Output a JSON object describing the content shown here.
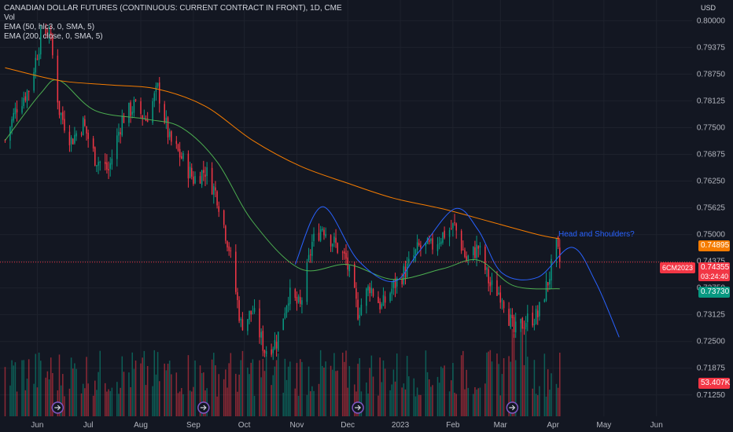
{
  "legend": {
    "title": "CANADIAN DOLLAR FUTURES (CONTINUOUS: CURRENT CONTRACT IN FRONT), 1D, CME",
    "vol": "Vol",
    "ema50": "EMA (50, hlc3, 0, SMA, 5)",
    "ema200": "EMA (200, close, 0, SMA, 5)"
  },
  "currency": "USD",
  "tags": {
    "symbol": "6CM2023",
    "last_price": "0.74355",
    "countdown": "03:24:40",
    "ema200_value": "0.74895",
    "ema50_value": "0.73730",
    "volume_value": "53.407K"
  },
  "annotation": "Head and Shoulders?",
  "colors": {
    "background": "#131722",
    "up": "#089981",
    "down": "#f23645",
    "ema50": "#4caf50",
    "ema200": "#f57c00",
    "pattern": "#2962ff",
    "event_icon": "#7e57c2"
  },
  "event_icon": "arrow-right-icon",
  "chart_data": {
    "type": "candlestick",
    "title": "CANADIAN DOLLAR FUTURES (CONTINUOUS: CURRENT CONTRACT IN FRONT), 1D, CME",
    "ylim": [
      0.7075,
      0.803
    ],
    "y_ticks": [
      "0.80000",
      "0.79375",
      "0.78750",
      "0.78125",
      "0.77500",
      "0.76875",
      "0.76250",
      "0.75625",
      "0.75000",
      "0.74375",
      "0.73750",
      "0.73125",
      "0.72500",
      "0.71875",
      "0.71250"
    ],
    "x_ticks": [
      "Jun",
      "Jul",
      "Aug",
      "Sep",
      "Oct",
      "Nov",
      "Dec",
      "2023",
      "Feb",
      "Mar",
      "Apr",
      "May",
      "Jun"
    ],
    "price_path": [
      [
        "2022-05-13",
        0.772
      ],
      [
        "2022-05-20",
        0.78
      ],
      [
        "2022-05-27",
        0.784
      ],
      [
        "2022-06-03",
        0.796
      ],
      [
        "2022-06-08",
        0.798
      ],
      [
        "2022-06-14",
        0.779
      ],
      [
        "2022-06-21",
        0.772
      ],
      [
        "2022-06-28",
        0.776
      ],
      [
        "2022-07-05",
        0.768
      ],
      [
        "2022-07-13",
        0.765
      ],
      [
        "2022-07-21",
        0.777
      ],
      [
        "2022-07-28",
        0.78
      ],
      [
        "2022-08-04",
        0.777
      ],
      [
        "2022-08-11",
        0.784
      ],
      [
        "2022-08-18",
        0.772
      ],
      [
        "2022-08-25",
        0.768
      ],
      [
        "2022-09-01",
        0.763
      ],
      [
        "2022-09-08",
        0.765
      ],
      [
        "2022-09-15",
        0.759
      ],
      [
        "2022-09-22",
        0.747
      ],
      [
        "2022-09-29",
        0.729
      ],
      [
        "2022-10-06",
        0.732
      ],
      [
        "2022-10-13",
        0.723
      ],
      [
        "2022-10-20",
        0.725
      ],
      [
        "2022-10-27",
        0.736
      ],
      [
        "2022-11-03",
        0.733
      ],
      [
        "2022-11-10",
        0.748
      ],
      [
        "2022-11-16",
        0.752
      ],
      [
        "2022-11-23",
        0.748
      ],
      [
        "2022-11-30",
        0.744
      ],
      [
        "2022-12-07",
        0.732
      ],
      [
        "2022-12-14",
        0.738
      ],
      [
        "2022-12-21",
        0.733
      ],
      [
        "2022-12-28",
        0.738
      ],
      [
        "2023-01-05",
        0.742
      ],
      [
        "2023-01-12",
        0.747
      ],
      [
        "2023-01-19",
        0.747
      ],
      [
        "2023-01-26",
        0.75
      ],
      [
        "2023-02-02",
        0.752
      ],
      [
        "2023-02-09",
        0.744
      ],
      [
        "2023-02-16",
        0.747
      ],
      [
        "2023-02-23",
        0.738
      ],
      [
        "2023-03-02",
        0.736
      ],
      [
        "2023-03-09",
        0.727
      ],
      [
        "2023-03-16",
        0.73
      ],
      [
        "2023-03-23",
        0.731
      ],
      [
        "2023-03-29",
        0.739
      ],
      [
        "2023-04-03",
        0.747
      ],
      [
        "2023-04-05",
        0.7436
      ]
    ],
    "series": [
      {
        "name": "EMA (50, hlc3, 0, SMA, 5)",
        "color": "#4caf50",
        "points": [
          [
            "2022-05-13",
            0.772
          ],
          [
            "2022-06-03",
            0.783
          ],
          [
            "2022-06-14",
            0.786
          ],
          [
            "2022-07-05",
            0.779
          ],
          [
            "2022-08-04",
            0.777
          ],
          [
            "2022-08-25",
            0.775
          ],
          [
            "2022-09-15",
            0.767
          ],
          [
            "2022-10-06",
            0.753
          ],
          [
            "2022-11-03",
            0.742
          ],
          [
            "2022-12-01",
            0.743
          ],
          [
            "2022-12-28",
            0.7395
          ],
          [
            "2023-01-26",
            0.742
          ],
          [
            "2023-02-16",
            0.744
          ],
          [
            "2023-03-09",
            0.738
          ],
          [
            "2023-04-05",
            0.7373
          ]
        ]
      },
      {
        "name": "EMA (200, close, 0, SMA, 5)",
        "color": "#f57c00",
        "points": [
          [
            "2022-05-13",
            0.789
          ],
          [
            "2022-06-14",
            0.786
          ],
          [
            "2022-07-13",
            0.785
          ],
          [
            "2022-08-11",
            0.784
          ],
          [
            "2022-09-08",
            0.78
          ],
          [
            "2022-10-06",
            0.772
          ],
          [
            "2022-11-03",
            0.766
          ],
          [
            "2022-12-01",
            0.762
          ],
          [
            "2022-12-28",
            0.7585
          ],
          [
            "2023-01-26",
            0.756
          ],
          [
            "2023-02-23",
            0.753
          ],
          [
            "2023-03-23",
            0.75
          ],
          [
            "2023-04-05",
            0.749
          ]
        ]
      }
    ],
    "pattern_curve": {
      "label": "Head and Shoulders?",
      "points": [
        [
          "2022-10-31",
          0.743
        ],
        [
          "2022-11-16",
          0.7565
        ],
        [
          "2022-12-07",
          0.744
        ],
        [
          "2022-12-28",
          0.739
        ],
        [
          "2023-01-12",
          0.746
        ],
        [
          "2023-02-02",
          0.756
        ],
        [
          "2023-02-16",
          0.751
        ],
        [
          "2023-03-02",
          0.741
        ],
        [
          "2023-03-23",
          0.74
        ],
        [
          "2023-04-12",
          0.747
        ],
        [
          "2023-04-26",
          0.739
        ],
        [
          "2023-05-10",
          0.726
        ]
      ]
    },
    "volume_last": "53.407K",
    "last": 0.74355,
    "ema50_last": 0.7373,
    "ema200_last": 0.74895
  }
}
